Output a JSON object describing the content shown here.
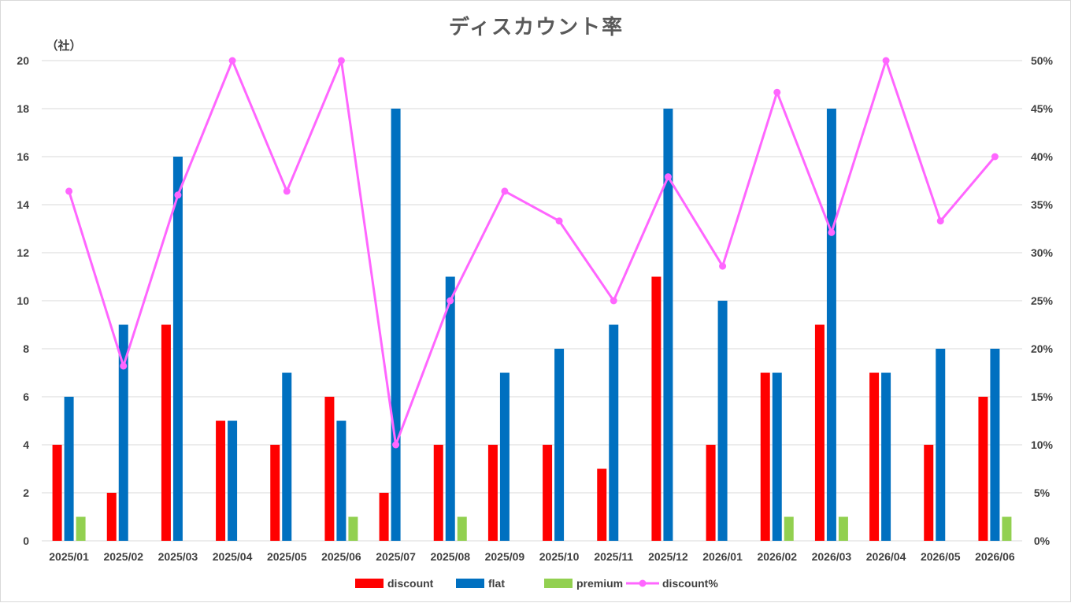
{
  "chart_data": {
    "type": "bar",
    "title": "ディスカウント率",
    "y_unit": "（社）",
    "categories": [
      "2025/01",
      "2025/02",
      "2025/03",
      "2025/04",
      "2025/05",
      "2025/06",
      "2025/07",
      "2025/08",
      "2025/09",
      "2025/10",
      "2025/11",
      "2025/12",
      "2026/01",
      "2026/02",
      "2026/03",
      "2026/04",
      "2026/05",
      "2026/06"
    ],
    "series": [
      {
        "name": "discount",
        "kind": "bar",
        "axis": "left",
        "color": "#ff0000",
        "values": [
          4,
          2,
          9,
          5,
          4,
          6,
          2,
          4,
          4,
          4,
          3,
          11,
          4,
          7,
          9,
          7,
          4,
          6
        ]
      },
      {
        "name": "flat",
        "kind": "bar",
        "axis": "left",
        "color": "#0070c0",
        "values": [
          6,
          9,
          16,
          5,
          7,
          5,
          18,
          11,
          7,
          8,
          9,
          18,
          10,
          7,
          18,
          7,
          8,
          8
        ]
      },
      {
        "name": "premium",
        "kind": "bar",
        "axis": "left",
        "color": "#92d050",
        "values": [
          1,
          0,
          0,
          0,
          0,
          1,
          0,
          1,
          0,
          0,
          0,
          0,
          0,
          1,
          1,
          0,
          0,
          1
        ]
      },
      {
        "name": "discount%",
        "kind": "line",
        "axis": "right",
        "color": "#ff66ff",
        "values": [
          36.4,
          18.2,
          36.0,
          50.0,
          36.4,
          50.0,
          10.0,
          25.0,
          36.4,
          33.3,
          25.0,
          37.9,
          28.6,
          46.7,
          32.1,
          50.0,
          33.3,
          40.0
        ]
      }
    ],
    "y_left": {
      "min": 0,
      "max": 20,
      "step": 2,
      "ticks": [
        "0",
        "2",
        "4",
        "6",
        "8",
        "10",
        "12",
        "14",
        "16",
        "18",
        "20"
      ]
    },
    "y_right": {
      "min": 0,
      "max": 50,
      "step": 5,
      "ticks": [
        "0%",
        "5%",
        "10%",
        "15%",
        "20%",
        "25%",
        "30%",
        "35%",
        "40%",
        "45%",
        "50%"
      ]
    },
    "grid": true,
    "legend_position": "bottom"
  }
}
